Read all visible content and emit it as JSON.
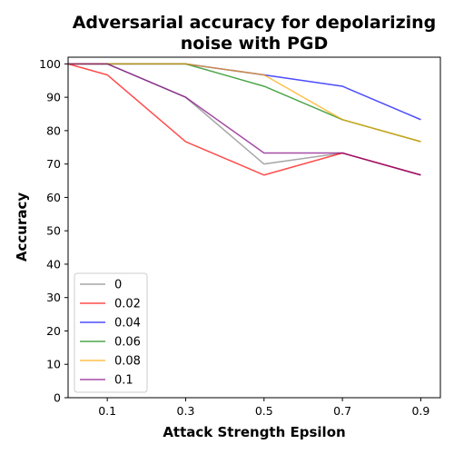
{
  "chart_data": {
    "type": "line",
    "title_line1": "Adversarial accuracy for depolarizing",
    "title_line2": "noise with PGD",
    "xlabel": "Attack Strength Epsilon",
    "ylabel": "Accuracy",
    "x": [
      0,
      0.1,
      0.3,
      0.5,
      0.7,
      0.9
    ],
    "xlim": [
      0,
      0.95
    ],
    "ylim": [
      0,
      102
    ],
    "xticks": [
      "0.1",
      "0.3",
      "0.5",
      "0.7",
      "0.9"
    ],
    "xtick_values": [
      0.1,
      0.3,
      0.5,
      0.7,
      0.9
    ],
    "yticks": [
      0,
      10,
      20,
      30,
      40,
      50,
      60,
      70,
      80,
      90,
      100
    ],
    "grid": false,
    "legend_position": "lower-left",
    "series": [
      {
        "name": "0",
        "color": "#808080",
        "values": [
          100,
          100,
          90,
          70,
          73.3,
          66.7
        ]
      },
      {
        "name": "0.02",
        "color": "#ff0000",
        "values": [
          100,
          96.7,
          76.7,
          66.7,
          73.3,
          66.7
        ]
      },
      {
        "name": "0.04",
        "color": "#0000ff",
        "values": [
          100,
          100,
          100,
          96.7,
          93.3,
          83.3
        ]
      },
      {
        "name": "0.06",
        "color": "#008000",
        "values": [
          100,
          100,
          100,
          93.3,
          83.3,
          76.7
        ]
      },
      {
        "name": "0.08",
        "color": "#ffa500",
        "values": [
          100,
          100,
          100,
          96.7,
          83.3,
          76.7
        ]
      },
      {
        "name": "0.1",
        "color": "#800080",
        "values": [
          100,
          100,
          90,
          73.3,
          73.3,
          66.7
        ]
      }
    ]
  }
}
